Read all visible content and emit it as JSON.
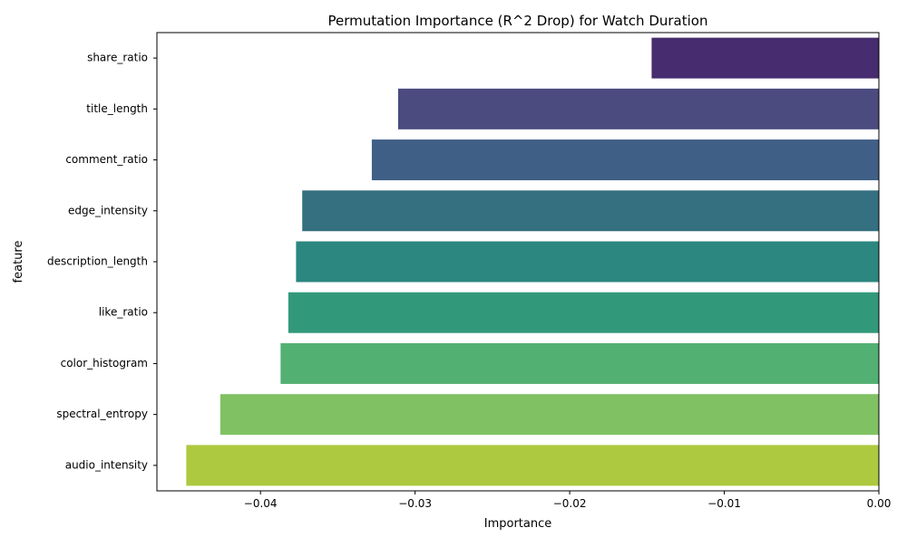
{
  "chart_data": {
    "type": "bar",
    "orientation": "horizontal",
    "title": "Permutation Importance (R^2 Drop) for Watch Duration",
    "xlabel": "Importance",
    "ylabel": "feature",
    "xlim": [
      -0.0467,
      0.0
    ],
    "x_ticks": [
      -0.04,
      -0.03,
      -0.02,
      -0.01,
      0.0
    ],
    "x_tick_labels": [
      "−0.04",
      "−0.03",
      "−0.02",
      "−0.01",
      "0.00"
    ],
    "grid": false,
    "categories": [
      "share_ratio",
      "title_length",
      "comment_ratio",
      "edge_intensity",
      "description_length",
      "like_ratio",
      "color_histogram",
      "spectral_entropy",
      "audio_intensity"
    ],
    "values": [
      -0.0147,
      -0.0311,
      -0.0328,
      -0.0373,
      -0.0377,
      -0.0382,
      -0.0387,
      -0.0426,
      -0.0448
    ],
    "colors": [
      "#472c6f",
      "#4b4b80",
      "#405f86",
      "#34707f",
      "#2b877f",
      "#31997a",
      "#52b073",
      "#80c263",
      "#adc93f"
    ]
  }
}
